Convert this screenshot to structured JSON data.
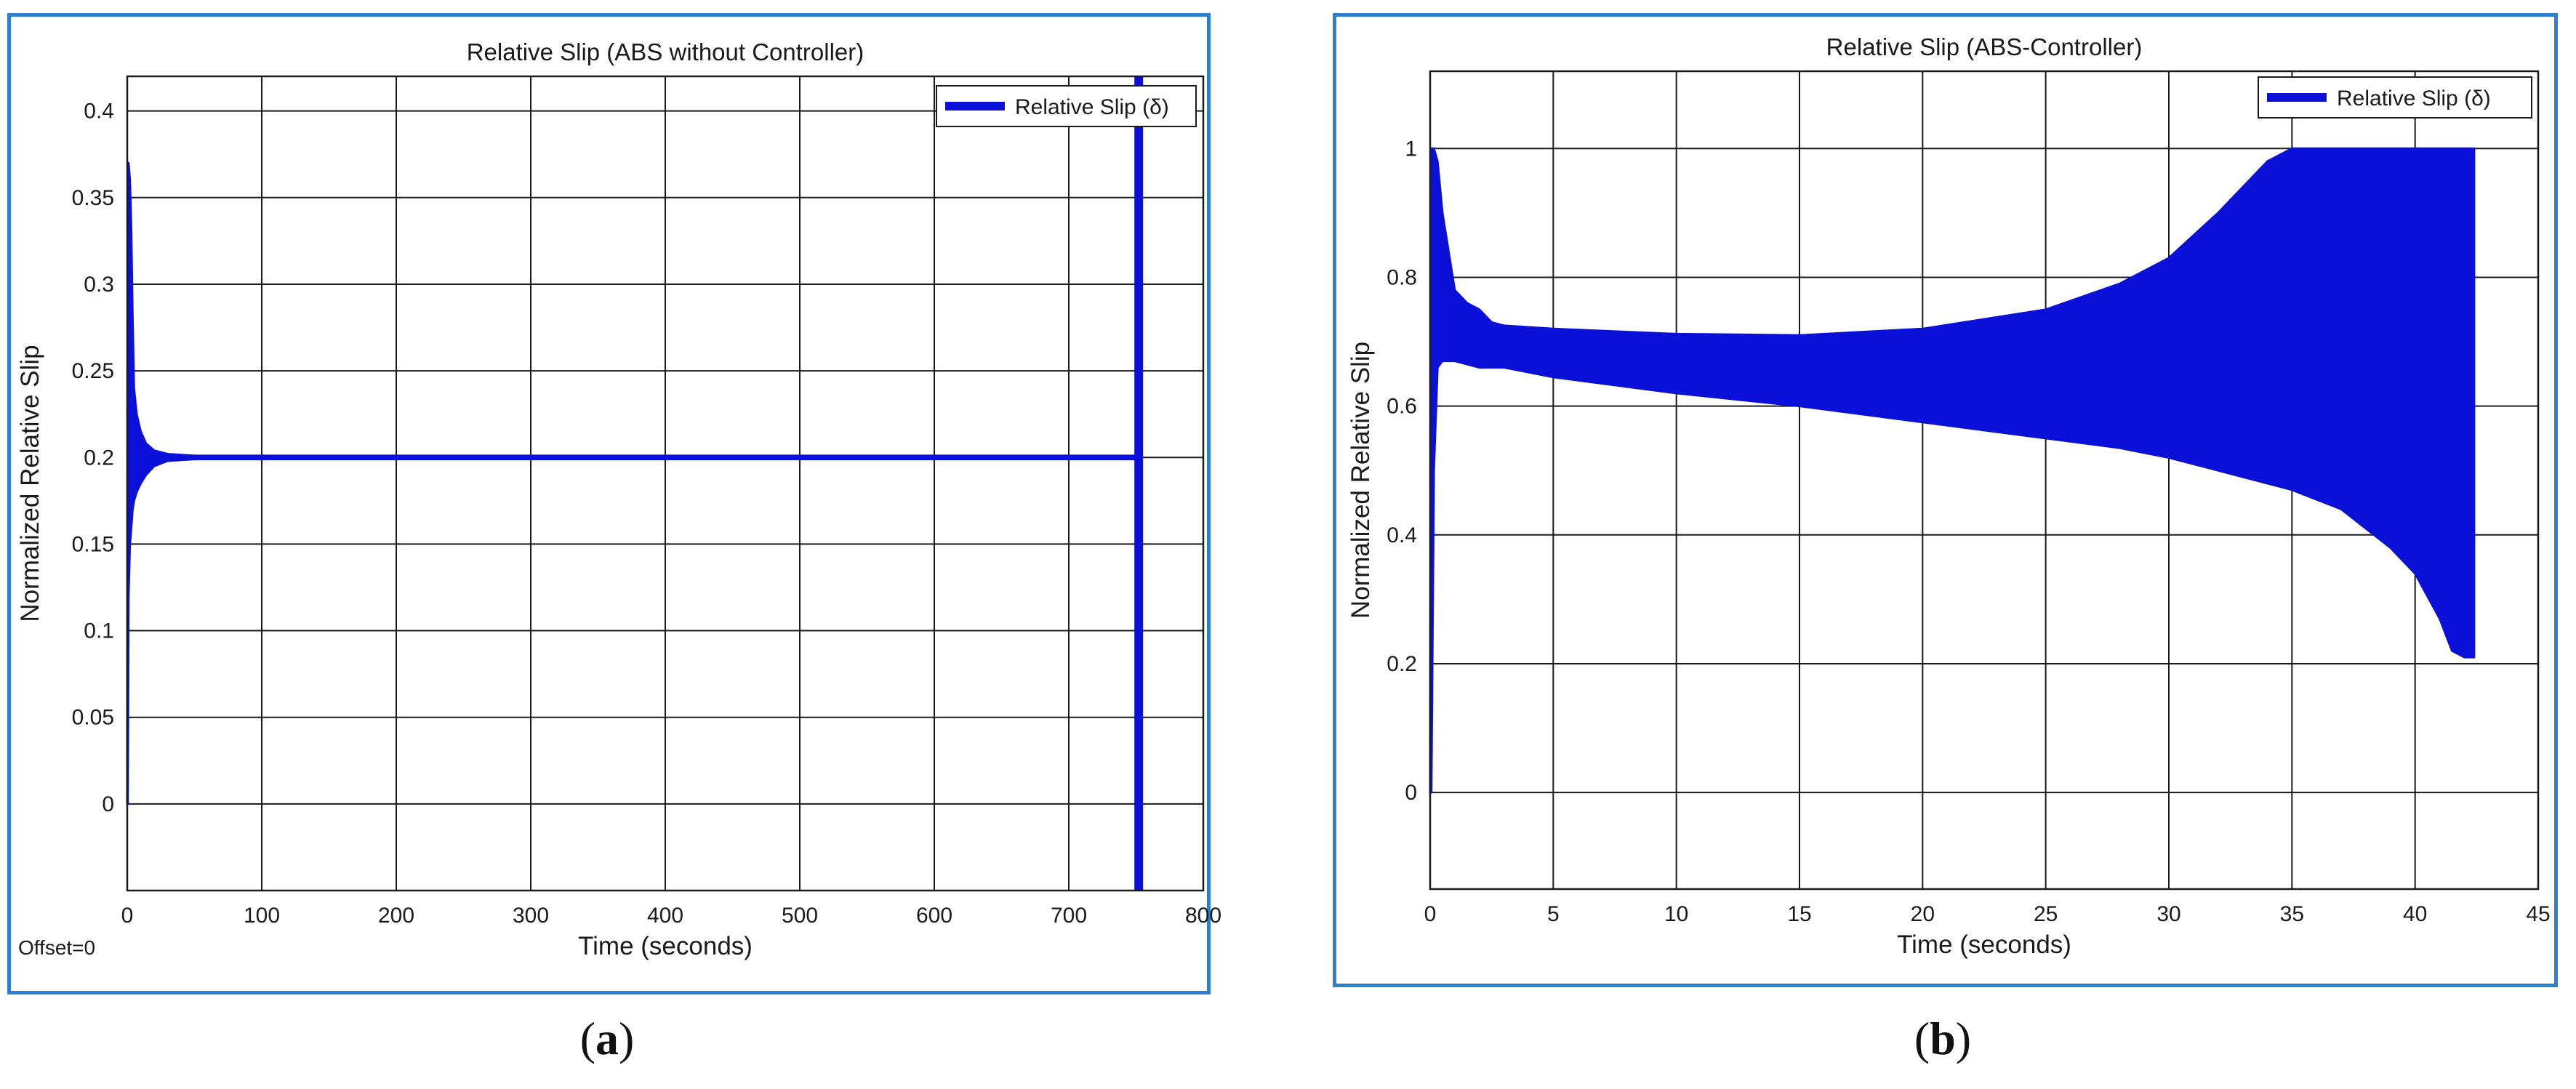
{
  "captions": {
    "a_open": "(",
    "a_letter": "a",
    "a_close": ")",
    "b_open": "(",
    "b_letter": "b",
    "b_close": ")"
  },
  "chart_data": [
    {
      "type": "line",
      "title": "Relative Slip (ABS without Controller)",
      "xlabel": "Time (seconds)",
      "ylabel": "Normalized Relative Slip",
      "xlim": [
        0,
        800
      ],
      "ylim": [
        -0.05,
        0.42
      ],
      "xticks": [
        0,
        100,
        200,
        300,
        400,
        500,
        600,
        700,
        800
      ],
      "yticks": [
        0,
        0.05,
        0.1,
        0.15,
        0.2,
        0.25,
        0.3,
        0.35,
        0.4
      ],
      "grid": true,
      "legend": "top-right",
      "footnote": "Offset=0",
      "color": "#0a10d8",
      "series": [
        {
          "name": "Relative Slip (δ)",
          "kind": "envelope",
          "x": [
            0,
            0.4,
            1,
            2,
            3,
            4,
            5,
            7,
            10,
            14,
            20,
            30,
            50,
            100,
            200,
            300,
            400,
            500,
            600,
            700,
            750
          ],
          "upper": [
            0,
            0.37,
            0.37,
            0.36,
            0.33,
            0.28,
            0.24,
            0.225,
            0.215,
            0.208,
            0.204,
            0.202,
            0.201,
            0.201,
            0.201,
            0.201,
            0.201,
            0.201,
            0.201,
            0.201,
            0.201
          ],
          "lower": [
            0,
            0.0,
            0.12,
            0.15,
            0.16,
            0.17,
            0.175,
            0.18,
            0.185,
            0.19,
            0.195,
            0.198,
            0.199,
            0.199,
            0.199,
            0.199,
            0.199,
            0.199,
            0.199,
            0.199,
            0.199
          ]
        }
      ],
      "vertical_marker_x": 752
    },
    {
      "type": "line",
      "title": "Relative Slip (ABS-Controller)",
      "xlabel": "Time (seconds)",
      "ylabel": "Normalized Relative Slip",
      "xlim": [
        0,
        45
      ],
      "ylim": [
        -0.15,
        1.12
      ],
      "xticks": [
        0,
        5,
        10,
        15,
        20,
        25,
        30,
        35,
        40,
        45
      ],
      "yticks": [
        0,
        0.2,
        0.4,
        0.6,
        0.8,
        1
      ],
      "grid": true,
      "legend": "top-right",
      "color": "#0a10d8",
      "series": [
        {
          "name": "Relative Slip (δ)",
          "kind": "envelope",
          "x": [
            0,
            0.05,
            0.15,
            0.3,
            0.5,
            1,
            1.5,
            2,
            2.5,
            3,
            5,
            10,
            15,
            20,
            25,
            28,
            30,
            32,
            34,
            35,
            37,
            39,
            40,
            41,
            41.5,
            42,
            42.4
          ],
          "upper": [
            0,
            1.0,
            1.0,
            0.98,
            0.9,
            0.78,
            0.76,
            0.75,
            0.73,
            0.725,
            0.72,
            0.712,
            0.71,
            0.72,
            0.75,
            0.79,
            0.83,
            0.9,
            0.98,
            1.0,
            1.0,
            1.0,
            1.0,
            1.0,
            1.0,
            1.0,
            1.0
          ],
          "lower": [
            0,
            0.0,
            0.5,
            0.66,
            0.67,
            0.67,
            0.665,
            0.66,
            0.66,
            0.66,
            0.645,
            0.62,
            0.6,
            0.575,
            0.55,
            0.535,
            0.52,
            0.5,
            0.48,
            0.47,
            0.44,
            0.38,
            0.34,
            0.27,
            0.22,
            0.21,
            0.21
          ]
        }
      ]
    }
  ]
}
